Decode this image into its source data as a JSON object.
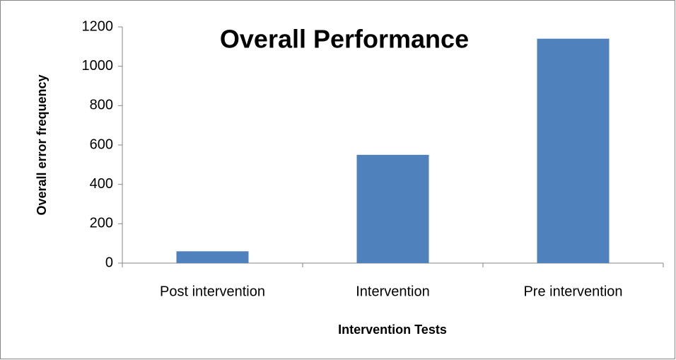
{
  "chart_data": {
    "type": "bar",
    "title": "Overall Performance",
    "x_label": "Intervention Tests",
    "y_label": "Overall error frequency",
    "categories": [
      "Post intervention",
      "Intervention",
      "Pre intervention"
    ],
    "values": [
      60,
      550,
      1140
    ],
    "color": "#4f81bd",
    "ylim": [
      0,
      1200
    ],
    "yticks": [
      0,
      200,
      400,
      600,
      800,
      1000,
      1200
    ],
    "grid": false
  }
}
